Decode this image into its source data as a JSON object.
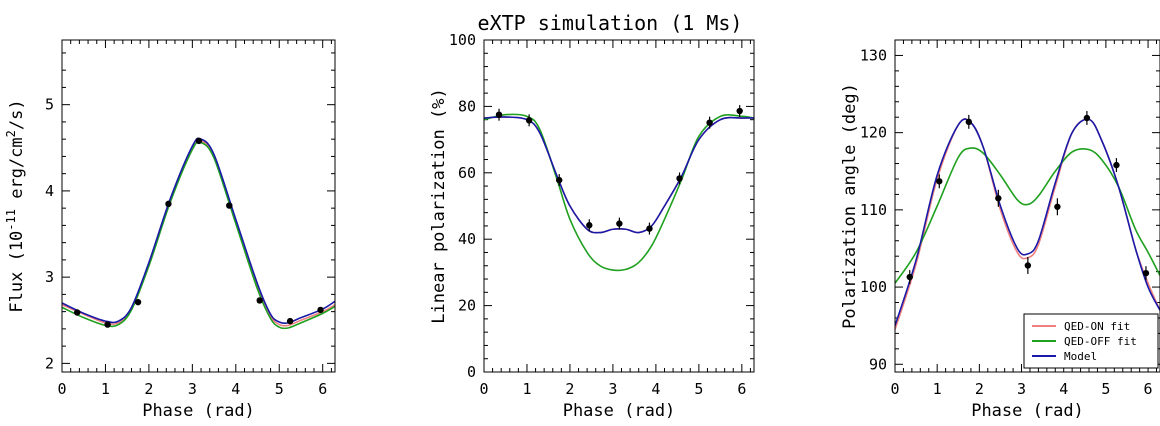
{
  "title": "eXTP simulation (1 Ms)",
  "colors": {
    "qed_on": "#f08080",
    "qed_off": "#1fa01f",
    "model": "#1a1aa8",
    "data": "#000000"
  },
  "chart_data": [
    {
      "type": "line",
      "ylabel": "Flux (10^-11 erg/cm^2/s)",
      "xlabel": "Phase (rad)",
      "xlim": [
        0,
        6.283
      ],
      "ylim": [
        1.9,
        5.75
      ],
      "xticks": [
        "0",
        "1",
        "2",
        "3",
        "4",
        "5",
        "6"
      ],
      "yticks": [
        2,
        3,
        4,
        5
      ],
      "series": [
        {
          "name": "QED-ON fit",
          "color": "#f08080",
          "x": [
            0,
            0.5,
            1.0,
            1.3,
            1.6,
            2.0,
            2.5,
            3.0,
            3.2,
            3.5,
            4.0,
            4.5,
            4.8,
            5.0,
            5.2,
            5.5,
            6.0,
            6.283
          ],
          "y": [
            2.68,
            2.57,
            2.47,
            2.47,
            2.63,
            3.15,
            3.9,
            4.5,
            4.58,
            4.4,
            3.65,
            2.9,
            2.55,
            2.45,
            2.44,
            2.5,
            2.6,
            2.68
          ]
        },
        {
          "name": "QED-OFF fit",
          "color": "#1fa01f",
          "x": [
            0,
            0.5,
            1.0,
            1.3,
            1.6,
            2.0,
            2.5,
            3.0,
            3.2,
            3.5,
            4.0,
            4.5,
            4.8,
            5.0,
            5.2,
            5.5,
            6.0,
            6.283
          ],
          "y": [
            2.65,
            2.53,
            2.44,
            2.45,
            2.62,
            3.13,
            3.88,
            4.48,
            4.56,
            4.38,
            3.62,
            2.86,
            2.52,
            2.42,
            2.41,
            2.47,
            2.58,
            2.66
          ]
        },
        {
          "name": "Model",
          "color": "#1a1aa8",
          "x": [
            0,
            0.5,
            1.0,
            1.3,
            1.6,
            2.0,
            2.5,
            3.0,
            3.2,
            3.5,
            4.0,
            4.5,
            4.8,
            5.0,
            5.2,
            5.5,
            6.0,
            6.283
          ],
          "y": [
            2.7,
            2.58,
            2.49,
            2.49,
            2.65,
            3.17,
            3.92,
            4.52,
            4.6,
            4.42,
            3.67,
            2.92,
            2.57,
            2.48,
            2.47,
            2.53,
            2.63,
            2.72
          ]
        }
      ],
      "points": {
        "x": [
          0.35,
          1.05,
          1.75,
          2.45,
          3.15,
          3.85,
          4.55,
          5.25,
          5.95
        ],
        "y": [
          2.59,
          2.45,
          2.71,
          3.85,
          4.58,
          3.83,
          2.73,
          2.49,
          2.62
        ],
        "err": [
          0.02,
          0.02,
          0.02,
          0.03,
          0.03,
          0.03,
          0.02,
          0.02,
          0.02
        ]
      }
    },
    {
      "type": "line",
      "ylabel": "Linear polarization (%)",
      "xlabel": "Phase (rad)",
      "xlim": [
        0,
        6.283
      ],
      "ylim": [
        0,
        100
      ],
      "xticks": [
        "0",
        "1",
        "2",
        "3",
        "4",
        "5",
        "6"
      ],
      "yticks": [
        0,
        20,
        40,
        60,
        80,
        100
      ],
      "series": [
        {
          "name": "QED-ON fit",
          "color": "#f08080",
          "x": [
            0,
            0.5,
            1.0,
            1.3,
            1.7,
            2.0,
            2.4,
            2.7,
            3.0,
            3.3,
            3.6,
            3.9,
            4.2,
            4.6,
            5.0,
            5.5,
            6.0,
            6.283
          ],
          "y": [
            76.5,
            76.8,
            76,
            72,
            59,
            50,
            43,
            42,
            43,
            43,
            42,
            44,
            50,
            59,
            70,
            76,
            76.5,
            76.5
          ]
        },
        {
          "name": "QED-OFF fit",
          "color": "#1fa01f",
          "x": [
            0,
            0.5,
            1.0,
            1.3,
            1.7,
            2.0,
            2.4,
            2.7,
            3.0,
            3.3,
            3.6,
            3.9,
            4.2,
            4.6,
            5.0,
            5.5,
            6.0,
            6.283
          ],
          "y": [
            76,
            77.5,
            77,
            73,
            58,
            46,
            36,
            32,
            30.7,
            30.9,
            33,
            38,
            46,
            58,
            71,
            77,
            77,
            76.5
          ]
        },
        {
          "name": "Model",
          "color": "#1a1aa8",
          "x": [
            0,
            0.5,
            1.0,
            1.3,
            1.7,
            2.0,
            2.4,
            2.7,
            3.0,
            3.3,
            3.6,
            3.9,
            4.2,
            4.6,
            5.0,
            5.5,
            6.0,
            6.283
          ],
          "y": [
            76.5,
            76.8,
            76,
            72,
            59,
            50,
            43,
            42,
            43,
            43,
            42,
            44,
            50,
            59,
            70,
            76,
            76.5,
            76.5
          ]
        }
      ],
      "points": {
        "x": [
          0.35,
          1.05,
          1.75,
          2.45,
          3.15,
          3.85,
          4.55,
          5.25,
          5.95
        ],
        "y": [
          77.5,
          75.8,
          57.8,
          44.2,
          44.7,
          43.2,
          58.3,
          75.1,
          78.6
        ],
        "err": [
          1.8,
          1.8,
          1.8,
          1.8,
          1.8,
          1.8,
          1.8,
          1.8,
          1.8
        ]
      }
    },
    {
      "type": "line",
      "ylabel": "Polarization angle (deg)",
      "xlabel": "Phase (rad)",
      "xlim": [
        0,
        6.283
      ],
      "ylim": [
        89,
        132
      ],
      "xticks": [
        "0",
        "1",
        "2",
        "3",
        "4",
        "5",
        "6"
      ],
      "yticks": [
        90,
        100,
        110,
        120,
        130
      ],
      "series": [
        {
          "name": "QED-ON fit",
          "color": "#f08080",
          "x": [
            0,
            0.5,
            1.0,
            1.5,
            1.8,
            2.1,
            2.5,
            2.9,
            3.15,
            3.4,
            3.8,
            4.2,
            4.6,
            4.9,
            5.3,
            5.7,
            6.0,
            6.283
          ],
          "y": [
            94.5,
            103,
            114,
            121,
            121.3,
            118,
            110,
            104.5,
            103.8,
            105.5,
            113,
            120,
            121.7,
            119,
            113,
            105,
            100.5,
            97
          ]
        },
        {
          "name": "QED-OFF fit",
          "color": "#1fa01f",
          "x": [
            0,
            0.5,
            1.0,
            1.5,
            1.8,
            2.1,
            2.5,
            2.9,
            3.15,
            3.4,
            3.8,
            4.2,
            4.6,
            4.9,
            5.3,
            5.7,
            6.0,
            6.283
          ],
          "y": [
            100.5,
            104.5,
            110.5,
            116.8,
            118,
            117.3,
            114.5,
            111.3,
            110.7,
            111.8,
            115,
            117.5,
            117.8,
            116.5,
            113,
            107.5,
            104.5,
            101.5
          ]
        },
        {
          "name": "Model",
          "color": "#1a1aa8",
          "x": [
            0,
            0.5,
            1.0,
            1.5,
            1.8,
            2.1,
            2.5,
            2.9,
            3.15,
            3.4,
            3.8,
            4.2,
            4.6,
            4.9,
            5.3,
            5.7,
            6.0,
            6.283
          ],
          "y": [
            95,
            103.5,
            114.5,
            121,
            121.3,
            118,
            110.5,
            105,
            104.3,
            106,
            113.5,
            120,
            121.7,
            119,
            113,
            105,
            100,
            97
          ]
        }
      ],
      "points": {
        "x": [
          0.35,
          1.05,
          1.75,
          2.45,
          3.15,
          3.85,
          4.55,
          5.25,
          5.95
        ],
        "y": [
          101.3,
          113.7,
          121.4,
          111.5,
          102.8,
          110.4,
          121.9,
          115.8,
          101.8
        ],
        "err": [
          0.9,
          0.9,
          0.9,
          1.1,
          1.1,
          1.1,
          0.9,
          0.9,
          0.9
        ]
      },
      "legend": {
        "position": "bottom-right",
        "entries": [
          {
            "label": "QED-ON fit",
            "color": "#f08080"
          },
          {
            "label": "QED-OFF fit",
            "color": "#1fa01f"
          },
          {
            "label": "Model",
            "color": "#1a1aa8"
          }
        ]
      }
    }
  ]
}
